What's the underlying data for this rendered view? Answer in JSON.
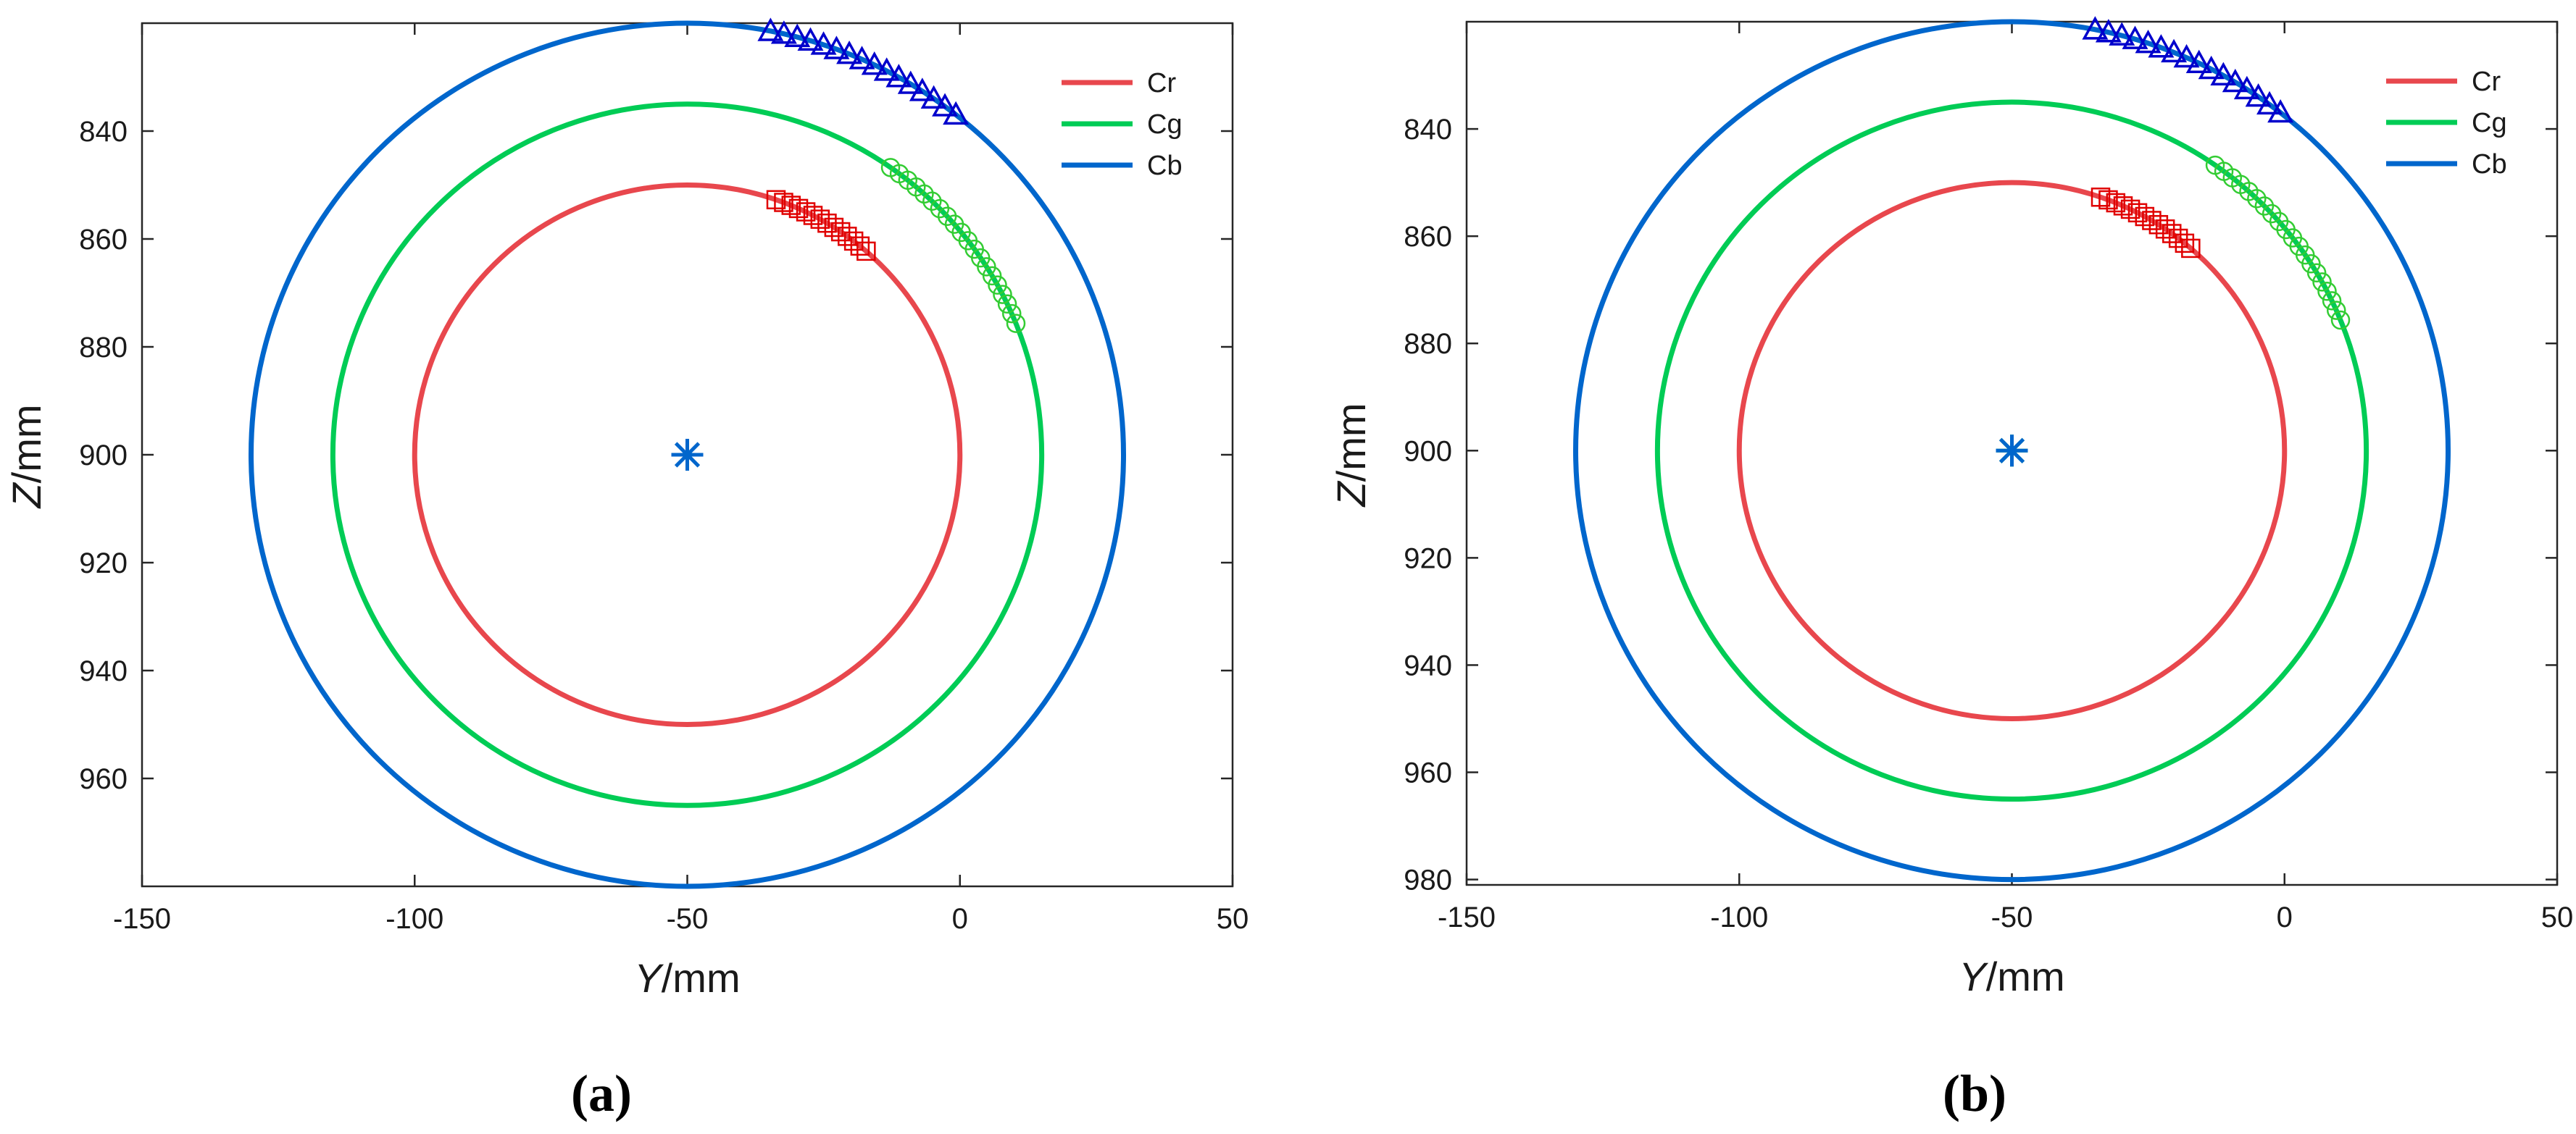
{
  "colors": {
    "cr": "#e8474d",
    "cg": "#00cc55",
    "cb": "#0066cc",
    "cr_marker": "#e00000",
    "cg_marker": "#33cc33",
    "cb_marker": "#0000cc",
    "center_a": "#0066cc",
    "center_b": "#0066cc",
    "center_b_overlay": "#00aa44",
    "axes": "#262626"
  },
  "chart_data": [
    {
      "type": "scatter",
      "panel_label": "(a)",
      "xlabel_italic": "Y",
      "xlabel_unit": "/mm",
      "ylabel_italic": "Z",
      "ylabel_unit": "/mm",
      "xlim": [
        -150,
        50
      ],
      "ylim": [
        980,
        820
      ],
      "xticks": [
        -150,
        -100,
        -50,
        0,
        50
      ],
      "xtick_labels": [
        "-150",
        "-100",
        "-50",
        "0",
        "50"
      ],
      "yticks": [
        840,
        860,
        880,
        900,
        920,
        940,
        960
      ],
      "ytick_labels": [
        "840",
        "860",
        "880",
        "900",
        "920",
        "940",
        "960"
      ],
      "y_reversed": true,
      "legend_position": "top-right",
      "series": [
        {
          "name": "Cr",
          "kind": "circle",
          "center": [
            -50,
            900
          ],
          "radius": 50,
          "color_key": "cr"
        },
        {
          "name": "Cg",
          "kind": "circle",
          "center": [
            -50,
            900
          ],
          "radius": 65,
          "color_key": "cg"
        },
        {
          "name": "Cb",
          "kind": "circle",
          "center": [
            -50,
            900
          ],
          "radius": 80,
          "color_key": "cb"
        }
      ],
      "marker_arcs": [
        {
          "series": "Cr",
          "marker": "square",
          "radius": 50,
          "angle_start_deg": 71,
          "angle_end_deg": 49,
          "count": 14,
          "color_key": "cr_marker"
        },
        {
          "series": "Cg",
          "marker": "circle",
          "radius": 65,
          "angle_start_deg": 55,
          "angle_end_deg": 22,
          "count": 20,
          "color_key": "cg_marker"
        },
        {
          "series": "Cb",
          "marker": "triangle",
          "radius": 80,
          "angle_start_deg": 79,
          "angle_end_deg": 52,
          "count": 16,
          "color_key": "cb_marker"
        }
      ],
      "center_markers": [
        {
          "name": "center",
          "point": [
            -50,
            900
          ],
          "marker": "asterisk",
          "color_key": "center_a"
        }
      ]
    },
    {
      "type": "scatter",
      "panel_label": "(b)",
      "xlabel_italic": "Y",
      "xlabel_unit": "/mm",
      "ylabel_italic": "Z",
      "ylabel_unit": "/mm",
      "xlim": [
        -150,
        50
      ],
      "ylim": [
        981,
        820
      ],
      "xticks": [
        -150,
        -100,
        -50,
        0,
        50
      ],
      "xtick_labels": [
        "-150",
        "-100",
        "-50",
        "0",
        "50"
      ],
      "yticks": [
        840,
        860,
        880,
        900,
        920,
        940,
        960,
        980
      ],
      "ytick_labels": [
        "840",
        "860",
        "880",
        "900",
        "920",
        "940",
        "960",
        "980"
      ],
      "y_reversed": true,
      "legend_position": "top-right",
      "series": [
        {
          "name": "Cr",
          "kind": "circle",
          "center": [
            -50,
            900
          ],
          "radius": 50,
          "color_key": "cr"
        },
        {
          "name": "Cg",
          "kind": "circle",
          "center": [
            -50,
            900
          ],
          "radius": 65,
          "color_key": "cg"
        },
        {
          "name": "Cb",
          "kind": "circle",
          "center": [
            -50,
            900
          ],
          "radius": 80,
          "color_key": "cb"
        }
      ],
      "marker_arcs": [
        {
          "series": "Cr",
          "marker": "square",
          "radius": 50,
          "angle_start_deg": 71,
          "angle_end_deg": 49,
          "count": 14,
          "color_key": "cr_marker"
        },
        {
          "series": "Cg",
          "marker": "circle",
          "radius": 65,
          "angle_start_deg": 55,
          "angle_end_deg": 22,
          "count": 20,
          "color_key": "cg_marker"
        },
        {
          "series": "Cb",
          "marker": "triangle",
          "radius": 80,
          "angle_start_deg": 79,
          "angle_end_deg": 52,
          "count": 16,
          "color_key": "cb_marker"
        }
      ],
      "center_markers": [
        {
          "name": "center-estimated",
          "point": [
            -50,
            900
          ],
          "marker": "asterisk",
          "color_key": "center_b_overlay"
        },
        {
          "name": "center",
          "point": [
            -50,
            900
          ],
          "marker": "asterisk",
          "color_key": "center_b"
        }
      ]
    }
  ]
}
